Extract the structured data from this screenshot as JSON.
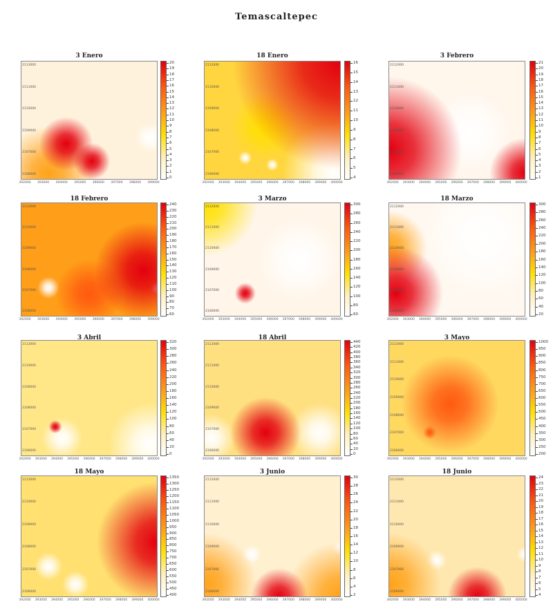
{
  "title": "Temascaltepec",
  "chart_data": [
    {
      "type": "heatmap",
      "title": "3 Enero",
      "colorbar_ticks": [
        20,
        19,
        18,
        17,
        16,
        15,
        14,
        13,
        12,
        11,
        10,
        9,
        8,
        7,
        6,
        5,
        4,
        3,
        2,
        1,
        0
      ],
      "x_ticks": [
        "392000",
        "393000",
        "394000",
        "395000",
        "396000",
        "397000",
        "398000",
        "399000"
      ],
      "y_ticks": [
        "2113000",
        "2111000",
        "2110000",
        "2109000",
        "2107000",
        "2106000"
      ],
      "background_color": "#fff2dc",
      "hot_spots": [
        {
          "x": 0.33,
          "y": 0.7,
          "r": 0.22,
          "level": 0.95
        },
        {
          "x": 0.52,
          "y": 0.85,
          "r": 0.15,
          "level": 0.85
        },
        {
          "x": 0.2,
          "y": 0.95,
          "r": 0.3,
          "level": 0.5
        }
      ],
      "cold_spots": [
        {
          "x": 0.95,
          "y": 0.65,
          "r": 0.1
        }
      ]
    },
    {
      "type": "heatmap",
      "title": "18 Enero",
      "colorbar_ticks": [
        16,
        15,
        14,
        13,
        12,
        11,
        10,
        9,
        8,
        7,
        6,
        5,
        4
      ],
      "x_ticks": [
        "392000",
        "393000",
        "394000",
        "395000",
        "396000",
        "397000",
        "398000",
        "399000",
        "400000"
      ],
      "y_ticks": [
        "2112000",
        "2110000",
        "2109000",
        "2108000",
        "2107000",
        "2106000"
      ],
      "background_color": "#ffd640",
      "hot_spots": [
        {
          "x": 1,
          "y": 0,
          "r": 0.6,
          "level": 1.0
        },
        {
          "x": 0.45,
          "y": 0.55,
          "r": 0.35,
          "level": 0.35
        }
      ],
      "cold_spots": [
        {
          "x": 0.95,
          "y": 0.95,
          "r": 0.3
        },
        {
          "x": 0.3,
          "y": 0.82,
          "r": 0.05
        },
        {
          "x": 0.5,
          "y": 0.88,
          "r": 0.05
        }
      ]
    },
    {
      "type": "heatmap",
      "title": "3 Febrero",
      "colorbar_ticks": [
        21,
        20,
        19,
        18,
        17,
        16,
        15,
        14,
        13,
        12,
        11,
        10,
        9,
        8,
        7,
        6,
        5,
        4,
        3,
        2,
        1
      ],
      "x_ticks": [
        "392000",
        "393000",
        "394000",
        "395000",
        "396000",
        "397000",
        "398000",
        "399000",
        "400000"
      ],
      "y_ticks": [
        "2112000",
        "2111000",
        "2110000",
        "2109000",
        "2107000",
        "2106000"
      ],
      "background_color": "#fff6ec",
      "hot_spots": [
        {
          "x": 0,
          "y": 0.75,
          "r": 0.45,
          "level": 1.0
        },
        {
          "x": 1,
          "y": 0.95,
          "r": 0.2,
          "level": 0.9
        }
      ],
      "cold_spots": [
        {
          "x": 0.6,
          "y": 0.6,
          "r": 0.4
        }
      ]
    },
    {
      "type": "heatmap",
      "title": "18 Febrero",
      "colorbar_ticks": [
        240,
        230,
        220,
        210,
        200,
        190,
        180,
        170,
        160,
        150,
        140,
        130,
        120,
        110,
        100,
        90,
        80,
        70,
        60
      ],
      "x_ticks": [
        "392000",
        "393000",
        "394000",
        "395000",
        "396000",
        "397000",
        "398000",
        "399000"
      ],
      "y_ticks": [
        "2112000",
        "2110000",
        "2109000",
        "2108000",
        "2107000",
        "2106000"
      ],
      "background_color": "#ff9e18",
      "hot_spots": [
        {
          "x": 0.9,
          "y": 0.6,
          "r": 0.35,
          "level": 0.95
        },
        {
          "x": 0.5,
          "y": 0.8,
          "r": 0.3,
          "level": 0.8
        }
      ],
      "cold_spots": [
        {
          "x": 0.2,
          "y": 0.75,
          "r": 0.08
        },
        {
          "x": 1,
          "y": 0.75,
          "r": 0.04
        }
      ]
    },
    {
      "type": "heatmap",
      "title": "3 Marzo",
      "colorbar_ticks": [
        300,
        280,
        260,
        240,
        220,
        200,
        180,
        160,
        140,
        120,
        100,
        80,
        60
      ],
      "x_ticks": [
        "392000",
        "393000",
        "394000",
        "395000",
        "396000",
        "397000",
        "398000",
        "399000",
        "400000"
      ],
      "y_ticks": [
        "2112000",
        "2111000",
        "2110000",
        "2109000",
        "2107000",
        "2106000"
      ],
      "background_color": "#fff5e8",
      "hot_spots": [
        {
          "x": 0.3,
          "y": 0.8,
          "r": 0.08,
          "level": 1.0
        },
        {
          "x": 0,
          "y": 0,
          "r": 0.3,
          "level": 0.35
        }
      ],
      "cold_spots": [
        {
          "x": 0.7,
          "y": 0.5,
          "r": 0.4
        }
      ]
    },
    {
      "type": "heatmap",
      "title": "18 Marzo",
      "colorbar_ticks": [
        300,
        280,
        260,
        240,
        220,
        200,
        180,
        160,
        140,
        120,
        100,
        80,
        60,
        40,
        20
      ],
      "x_ticks": [
        "392000",
        "393000",
        "394000",
        "395000",
        "396000",
        "397000",
        "398000",
        "399000",
        "400000"
      ],
      "y_ticks": [
        "2112000",
        "2111000",
        "2110000",
        "2109000",
        "2107000",
        "2106000"
      ],
      "background_color": "#fff8f0",
      "hot_spots": [
        {
          "x": 0.05,
          "y": 0.8,
          "r": 0.3,
          "level": 1.0
        },
        {
          "x": 0,
          "y": 0.4,
          "r": 0.25,
          "level": 0.5
        }
      ],
      "cold_spots": [
        {
          "x": 0.7,
          "y": 0.3,
          "r": 0.5
        }
      ]
    },
    {
      "type": "heatmap",
      "title": "3 Abril",
      "colorbar_ticks": [
        320,
        300,
        280,
        260,
        240,
        220,
        200,
        180,
        160,
        140,
        120,
        100,
        80,
        60,
        40,
        20,
        0
      ],
      "x_ticks": [
        "392000",
        "393000",
        "394000",
        "395000",
        "396000",
        "397000",
        "398000",
        "399000",
        "400000"
      ],
      "y_ticks": [
        "2112000",
        "2110000",
        "2109000",
        "2108000",
        "2107000",
        "2106000"
      ],
      "background_color": "#ffe788",
      "hot_spots": [
        {
          "x": 0.25,
          "y": 0.75,
          "r": 0.05,
          "level": 0.9
        }
      ],
      "cold_spots": [
        {
          "x": 0.95,
          "y": 0.9,
          "r": 0.25
        },
        {
          "x": 0.3,
          "y": 0.85,
          "r": 0.15
        }
      ]
    },
    {
      "type": "heatmap",
      "title": "18 Abril",
      "colorbar_ticks": [
        440,
        420,
        400,
        380,
        360,
        340,
        320,
        300,
        280,
        260,
        240,
        220,
        200,
        180,
        160,
        140,
        120,
        100,
        80,
        60,
        40,
        20,
        0
      ],
      "x_ticks": [
        "392000",
        "393000",
        "394000",
        "395000",
        "396000",
        "397000",
        "398000",
        "399000",
        "400000"
      ],
      "y_ticks": [
        "2112000",
        "2111000",
        "2110000",
        "2109000",
        "2107000",
        "2106000"
      ],
      "background_color": "#ffe080",
      "hot_spots": [
        {
          "x": 0.45,
          "y": 0.8,
          "r": 0.3,
          "level": 1.0
        }
      ],
      "cold_spots": [
        {
          "x": 0.05,
          "y": 0.85,
          "r": 0.15
        },
        {
          "x": 0.85,
          "y": 0.8,
          "r": 0.2
        }
      ]
    },
    {
      "type": "heatmap",
      "title": "3 Mayo",
      "colorbar_ticks": [
        1000,
        950,
        900,
        850,
        800,
        750,
        700,
        650,
        600,
        550,
        500,
        450,
        400,
        350,
        300,
        250,
        200
      ],
      "x_ticks": [
        "392000",
        "393000",
        "394000",
        "395000",
        "396000",
        "397000",
        "398000",
        "399000",
        "400000"
      ],
      "y_ticks": [
        "2112000",
        "2111000",
        "2110000",
        "2109000",
        "2108000",
        "2107000",
        "2106000"
      ],
      "background_color": "#ffd860",
      "hot_spots": [
        {
          "x": 0.45,
          "y": 0.55,
          "r": 0.5,
          "level": 0.7
        },
        {
          "x": 0.3,
          "y": 0.8,
          "r": 0.05,
          "level": 0.8
        }
      ],
      "cold_spots": []
    },
    {
      "type": "heatmap",
      "title": "18 Mayo",
      "colorbar_ticks": [
        1350,
        1300,
        1250,
        1200,
        1150,
        1100,
        1050,
        1000,
        950,
        900,
        850,
        800,
        750,
        700,
        650,
        600,
        550,
        500,
        450,
        400
      ],
      "x_ticks": [
        "392000",
        "393000",
        "394000",
        "395000",
        "396000",
        "397000",
        "398000",
        "399000",
        "400000"
      ],
      "y_ticks": [
        "2112000",
        "2110000",
        "2109000",
        "2108000",
        "2107000",
        "2106000"
      ],
      "background_color": "#ffe070",
      "hot_spots": [
        {
          "x": 1,
          "y": 0.55,
          "r": 0.4,
          "level": 1.0
        }
      ],
      "cold_spots": [
        {
          "x": 0.2,
          "y": 0.75,
          "r": 0.1
        },
        {
          "x": 0.4,
          "y": 0.9,
          "r": 0.1
        }
      ]
    },
    {
      "type": "heatmap",
      "title": "3 Junio",
      "colorbar_ticks": [
        30,
        28,
        26,
        24,
        22,
        20,
        18,
        16,
        14,
        12,
        10,
        8,
        6,
        4,
        2
      ],
      "x_ticks": [
        "392000",
        "393000",
        "394000",
        "395000",
        "396000",
        "397000",
        "398000",
        "399000",
        "400000"
      ],
      "y_ticks": [
        "2112000",
        "2111000",
        "2110000",
        "2109000",
        "2107000",
        "2106000"
      ],
      "background_color": "#fff0d0",
      "hot_spots": [
        {
          "x": 0.55,
          "y": 1,
          "r": 0.2,
          "level": 1.0
        },
        {
          "x": 0,
          "y": 0.9,
          "r": 0.3,
          "level": 0.45
        },
        {
          "x": 1,
          "y": 1,
          "r": 0.3,
          "level": 0.45
        }
      ],
      "cold_spots": [
        {
          "x": 0.35,
          "y": 0.65,
          "r": 0.08
        },
        {
          "x": 1,
          "y": 0.6,
          "r": 0.05
        }
      ]
    },
    {
      "type": "heatmap",
      "title": "18 Junio",
      "colorbar_ticks": [
        24,
        23,
        22,
        21,
        20,
        19,
        18,
        17,
        16,
        15,
        14,
        13,
        12,
        11,
        10,
        9,
        8,
        7,
        6,
        5,
        4
      ],
      "x_ticks": [
        "392000",
        "393000",
        "394000",
        "395000",
        "396000",
        "397000",
        "398000",
        "399000",
        "400000"
      ],
      "y_ticks": [
        "2112000",
        "2111000",
        "2110000",
        "2109000",
        "2107000",
        "2106000"
      ],
      "background_color": "#ffe8b0",
      "hot_spots": [
        {
          "x": 0.65,
          "y": 1,
          "r": 0.2,
          "level": 1.0
        },
        {
          "x": 0,
          "y": 0.9,
          "r": 0.3,
          "level": 0.45
        }
      ],
      "cold_spots": [
        {
          "x": 0.35,
          "y": 0.7,
          "r": 0.08
        },
        {
          "x": 1,
          "y": 0.65,
          "r": 0.05
        }
      ]
    }
  ]
}
